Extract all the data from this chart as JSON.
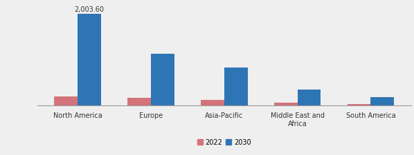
{
  "categories": [
    "North America",
    "Europe",
    "Asia-Pacific",
    "Middle East and\nAfrica",
    "South America"
  ],
  "values_2022": [
    190,
    160,
    110,
    60,
    30
  ],
  "values_2030": [
    2003.6,
    1120,
    820,
    340,
    170
  ],
  "bar_color_2022": "#d4737a",
  "bar_color_2030": "#2e75b6",
  "annotation_text": "2,003.60",
  "annotation_bar": 0,
  "legend_labels": [
    "2022",
    "2030"
  ],
  "bar_width": 0.32,
  "ylim": [
    0,
    2250
  ],
  "background_color": "#f0efef",
  "plot_bg_color": "#f0efef",
  "label_fontsize": 6.5,
  "tick_fontsize": 7,
  "annotation_fontsize": 7,
  "legend_fontsize": 7
}
